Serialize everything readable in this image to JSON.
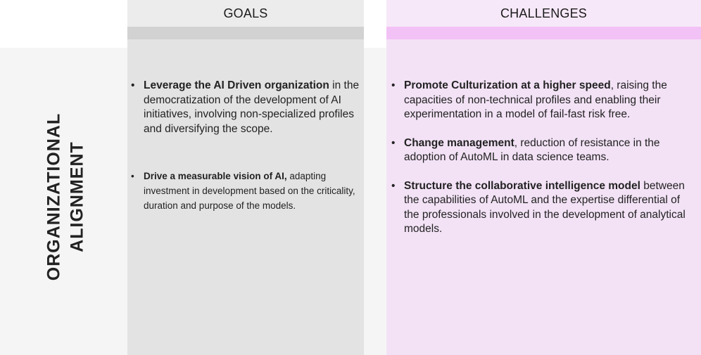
{
  "side_label": {
    "line1": "ORGANIZATIONAL",
    "line2": "ALIGNMENT"
  },
  "goals": {
    "header": "GOALS",
    "items": [
      {
        "bold": "Leverage the AI Driven organization",
        "text": " in the democratization of the development of AI initiatives, involving non-specialized profiles and diversifying the scope."
      },
      {
        "bold": "Drive a measurable vision of AI,",
        "text": " adapting investment in development based on the criticality, duration and purpose of the models."
      }
    ]
  },
  "challenges": {
    "header": "CHALLENGES",
    "items": [
      {
        "bold": "Promote Culturization at a higher speed",
        "text": ", raising the capacities of non-technical profiles and enabling their experimentation in a model of fail-fast risk free."
      },
      {
        "bold": "Change management",
        "text": ", reduction of resistance in the adoption of AutoML in data science teams."
      },
      {
        "bold": "Structure the collaborative intelligence model",
        "text": " between the capabilities of AutoML and the expertise differential of the professionals involved in the development of analytical models."
      }
    ]
  },
  "colors": {
    "goals_column": "#e3e3e3",
    "goals_stripe": "#d2d2d2",
    "challenges_column": "#f3e2f6",
    "challenges_stripe": "#f2c2f6"
  }
}
